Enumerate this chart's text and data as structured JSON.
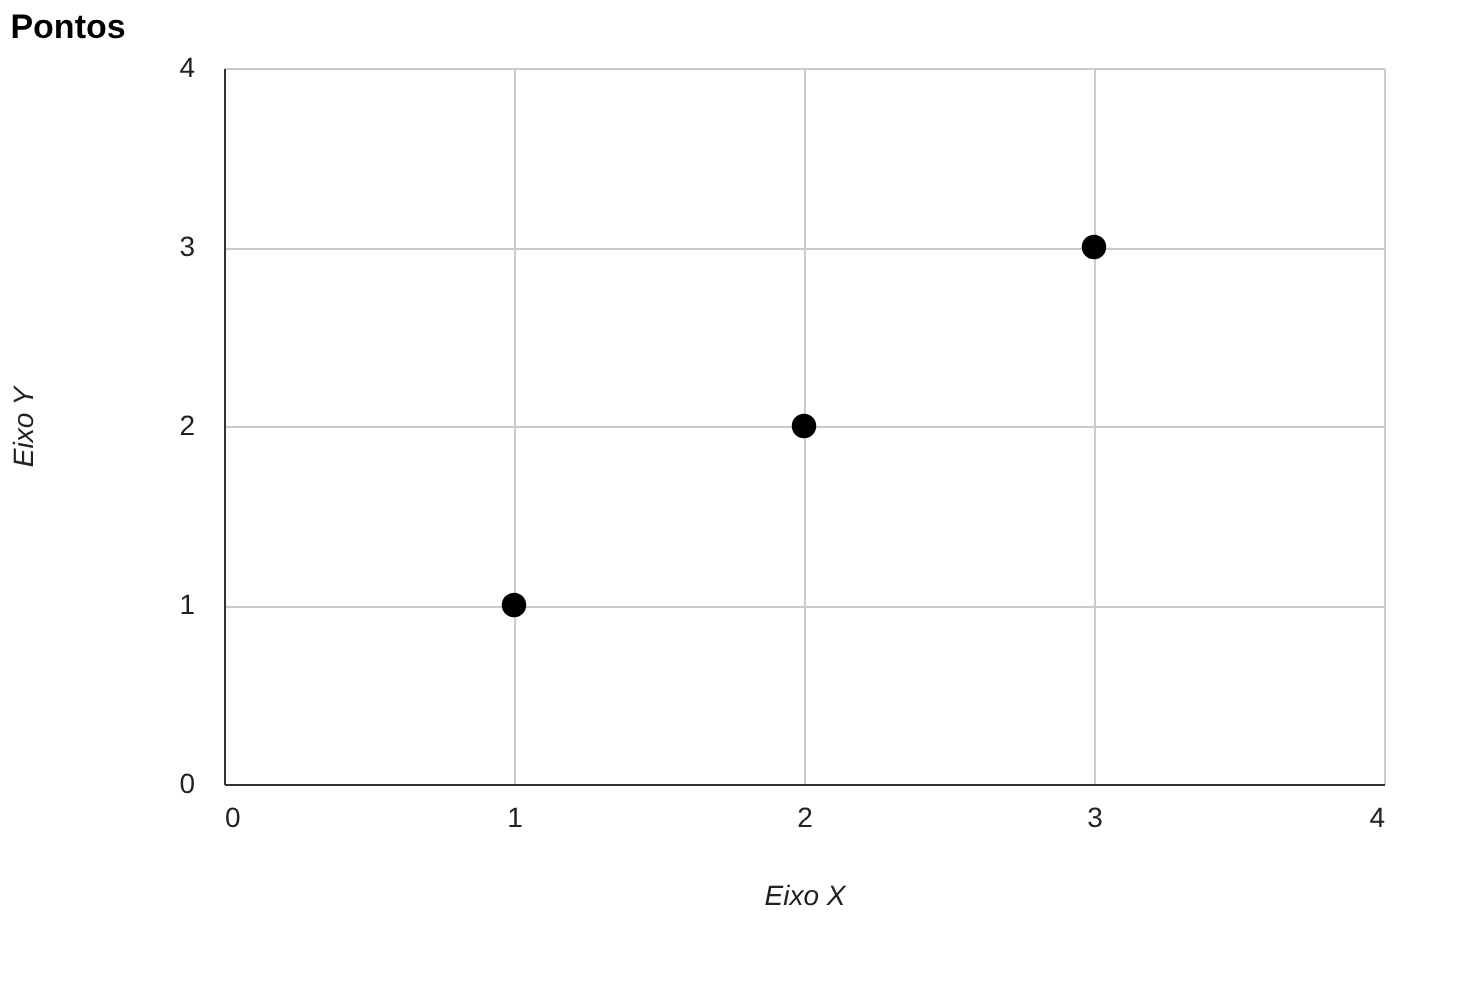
{
  "chart_data": {
    "type": "scatter",
    "title": "Pontos",
    "xlabel": "Eixo X",
    "ylabel": "Eixo Y",
    "x": [
      1,
      2,
      3
    ],
    "series": [
      {
        "color": "#000000",
        "values": [
          1,
          2,
          3
        ]
      }
    ],
    "xlim": [
      0,
      4
    ],
    "xticks": [
      0,
      1,
      2,
      3,
      4
    ],
    "ylim": [
      0,
      4
    ],
    "yticks": [
      0,
      1,
      2,
      3,
      4
    ],
    "grid": true,
    "marker": "circle"
  }
}
